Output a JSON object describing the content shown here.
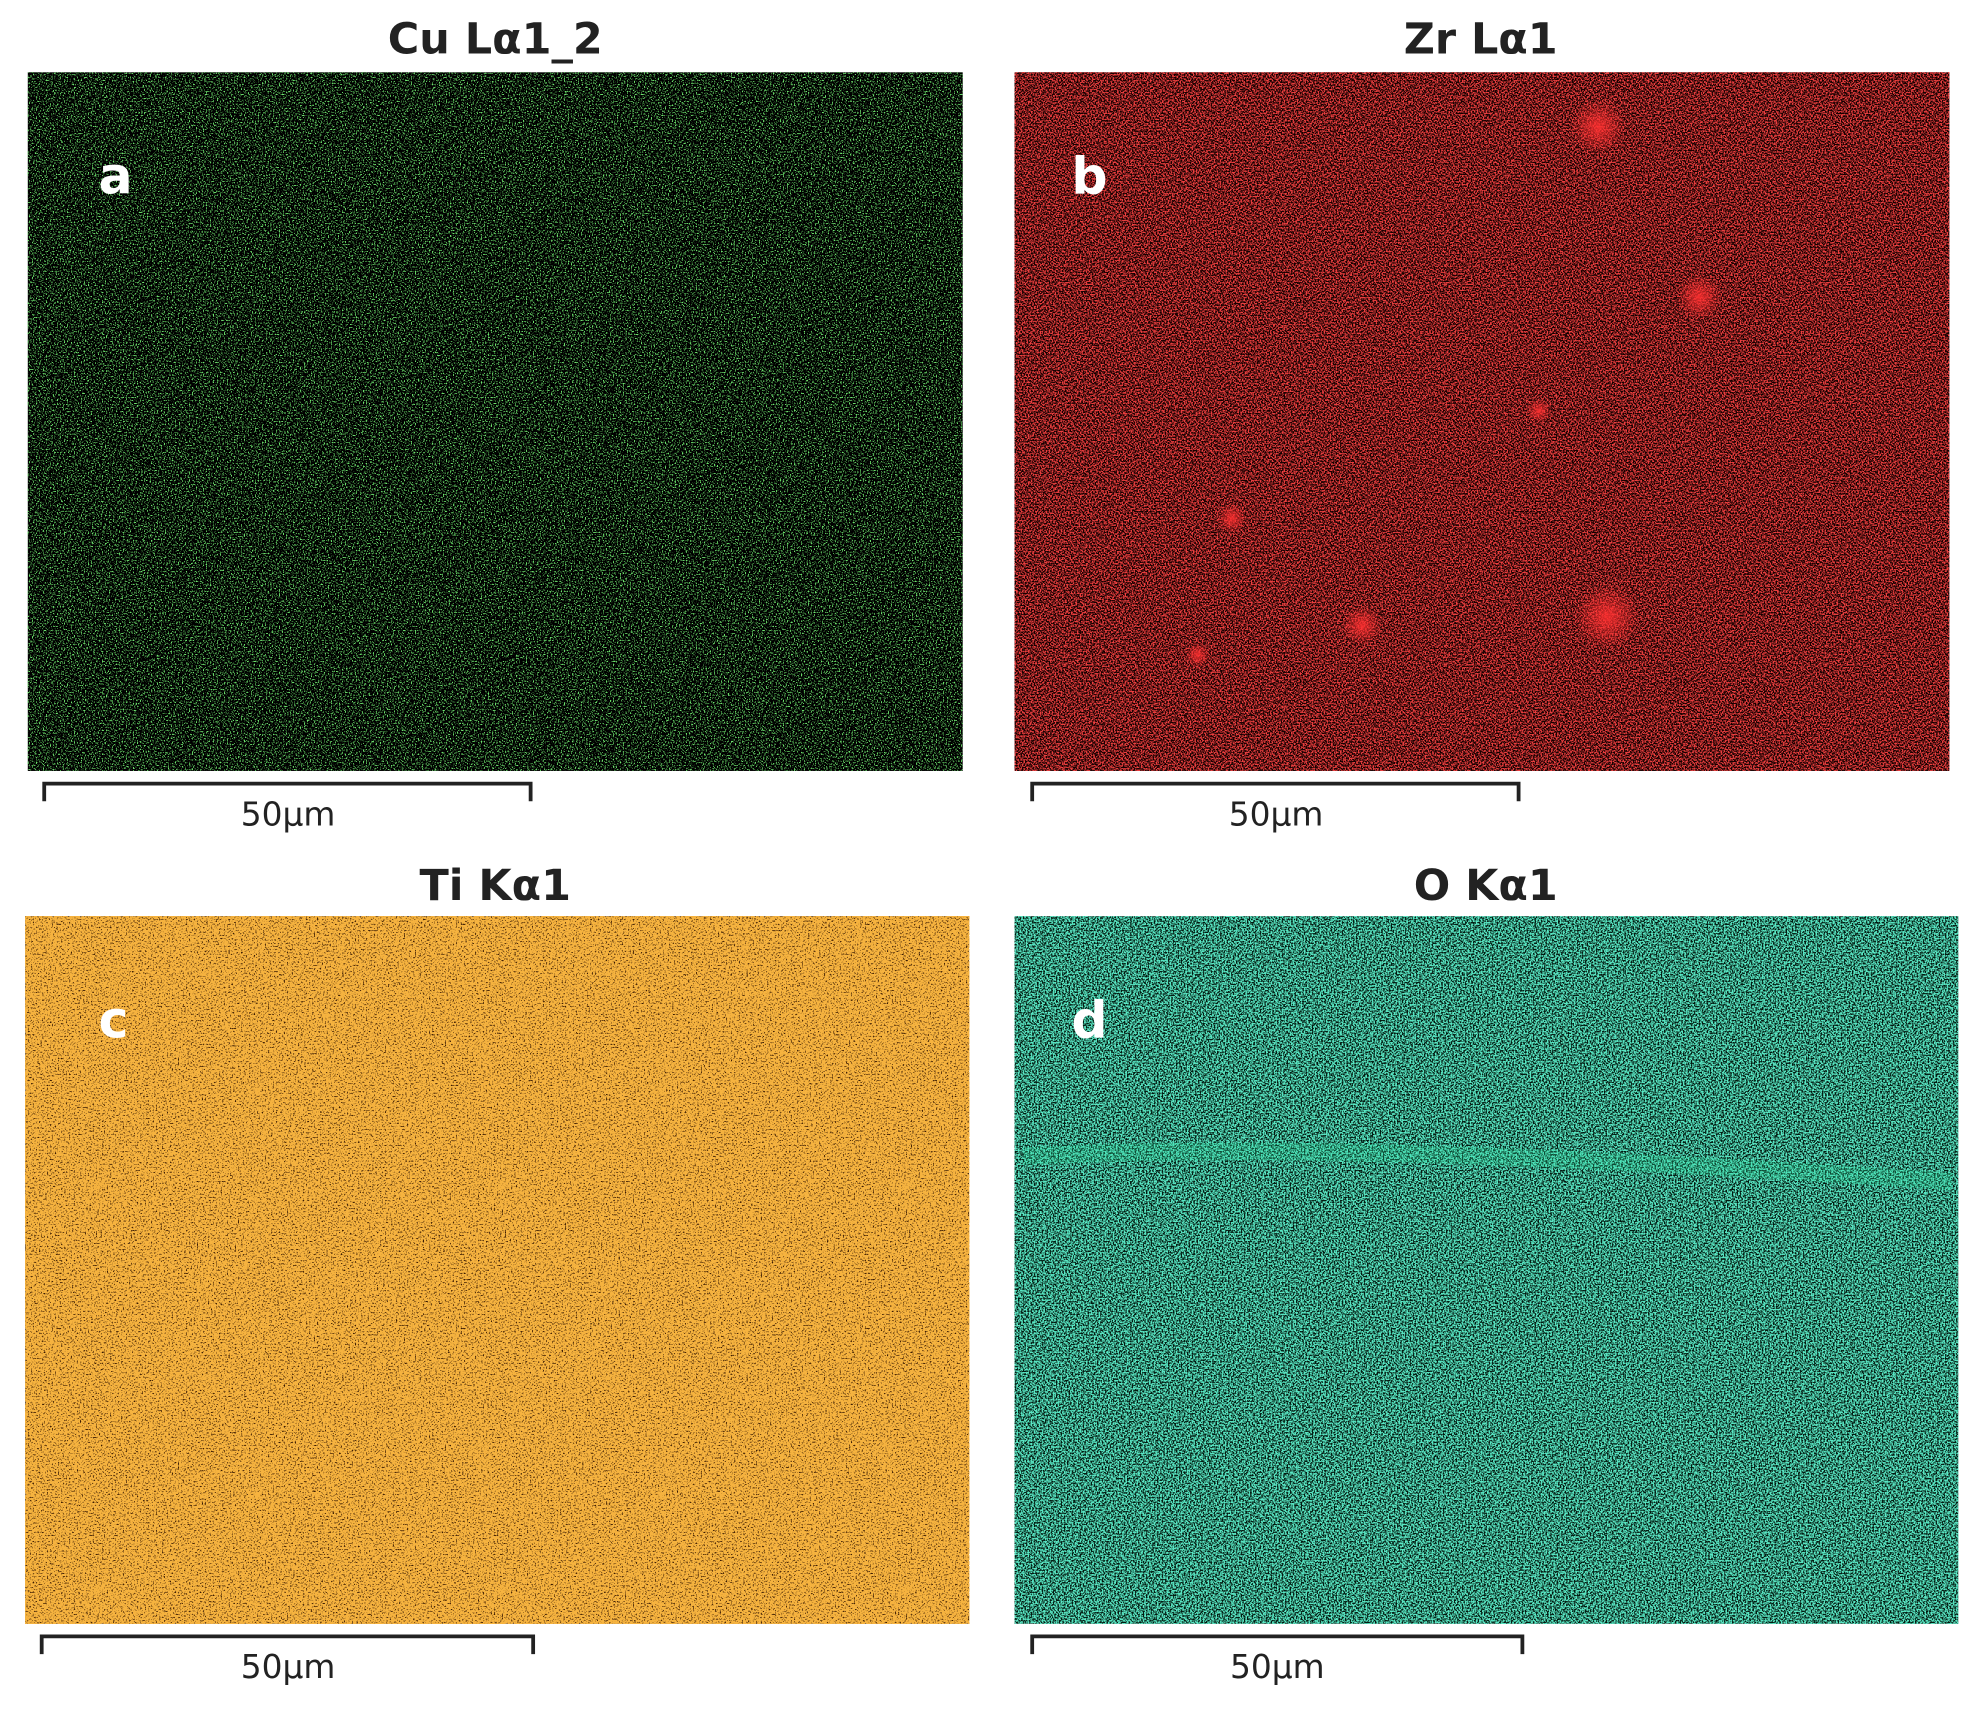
{
  "panels": [
    {
      "title": "Cu Lα1_2",
      "label": "a",
      "scale_bar": "50µm"
    },
    {
      "title": "Zr Lα1",
      "label": "b",
      "scale_bar": "50µm"
    },
    {
      "title": "Ti Kα1",
      "label": "c",
      "scale_bar": "50µm"
    },
    {
      "title": "O Kα1",
      "label": "d",
      "scale_bar": "50µm"
    }
  ]
}
